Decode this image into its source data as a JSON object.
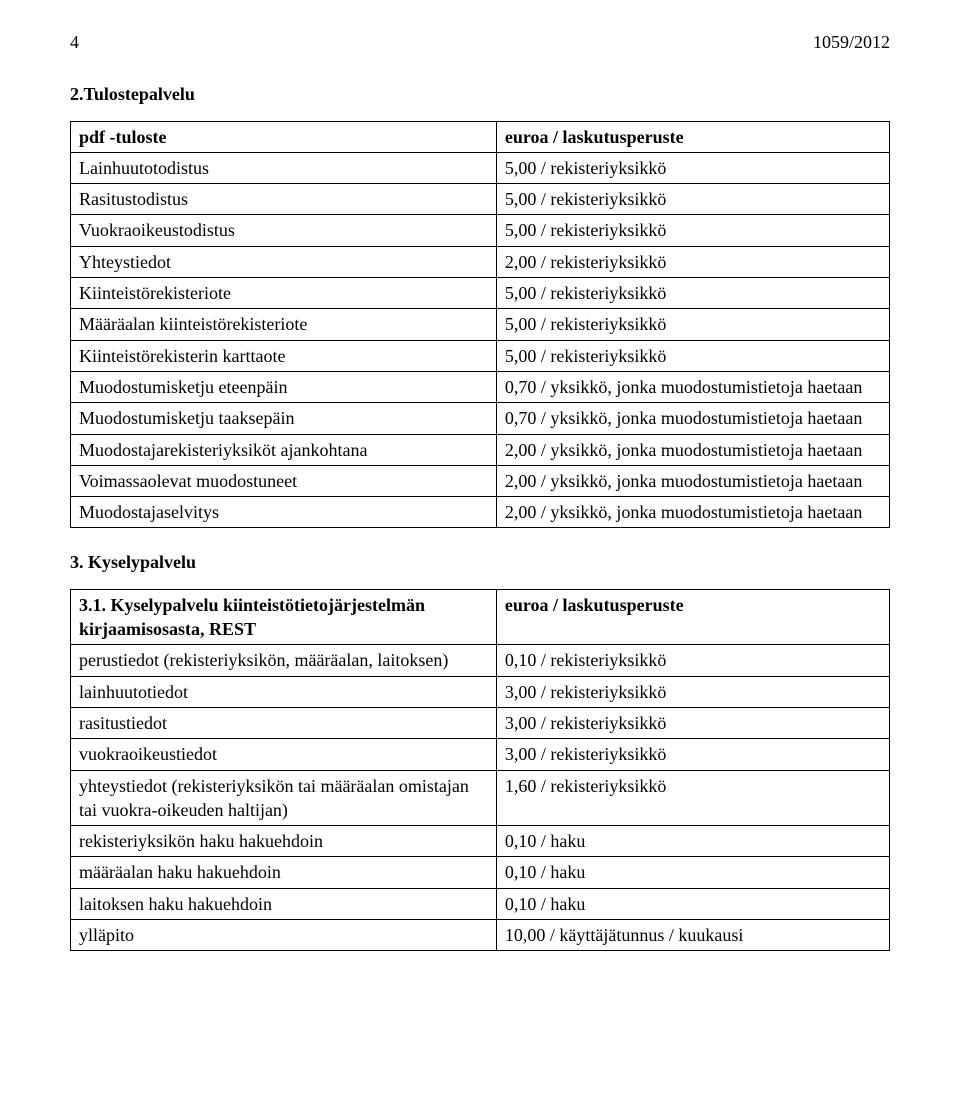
{
  "header": {
    "page_number": "4",
    "doc_ref": "1059/2012"
  },
  "section2": {
    "heading": "2.Tulostepalvelu",
    "rows": [
      {
        "left": "pdf -tuloste",
        "left_bold": true,
        "right": "euroa / laskutusperuste",
        "right_bold": true
      },
      {
        "left": "Lainhuutotodistus",
        "right": "5,00 / rekisteriyksikkö"
      },
      {
        "left": "Rasitustodistus",
        "right": "5,00 / rekisteriyksikkö"
      },
      {
        "left": "Vuokraoikeustodistus",
        "right": "5,00 / rekisteriyksikkö"
      },
      {
        "left": "Yhteystiedot",
        "right": "2,00 / rekisteriyksikkö"
      },
      {
        "left": "Kiinteistörekisteriote",
        "right": "5,00 / rekisteriyksikkö"
      },
      {
        "left": "Määräalan kiinteistörekisteriote",
        "right": "5,00 / rekisteriyksikkö"
      },
      {
        "left": "Kiinteistörekisterin karttaote",
        "right": "5,00 / rekisteriyksikkö"
      },
      {
        "left": "Muodostumisketju eteenpäin",
        "right": "0,70 / yksikkö, jonka muodostumistietoja haetaan"
      },
      {
        "left": "Muodostumisketju taaksepäin",
        "right": "0,70 / yksikkö, jonka muodostumistietoja haetaan"
      },
      {
        "left": "Muodostajarekisteriyksiköt ajankohtana",
        "right": "2,00 / yksikkö, jonka muodostumistietoja haetaan"
      },
      {
        "left": "Voimassaolevat muodostuneet",
        "right": "2,00 / yksikkö, jonka muodostumistietoja haetaan"
      },
      {
        "left": "Muodostajaselvitys",
        "right": "2,00 / yksikkö, jonka muodostumistietoja haetaan"
      }
    ]
  },
  "section3": {
    "heading": "3. Kyselypalvelu",
    "rows": [
      {
        "left": "3.1. Kyselypalvelu kiinteistötietojärjestelmän  kirjaamisosasta, REST",
        "left_bold": true,
        "right": "euroa / laskutusperuste",
        "right_bold": true
      },
      {
        "left": "perustiedot (rekisteriyksikön, määräalan, laitoksen)",
        "right": "0,10 / rekisteriyksikkö"
      },
      {
        "left": "lainhuutotiedot",
        "right": "3,00 / rekisteriyksikkö"
      },
      {
        "left": "rasitustiedot",
        "right": "3,00 / rekisteriyksikkö"
      },
      {
        "left": "vuokraoikeustiedot",
        "right": "3,00 / rekisteriyksikkö"
      },
      {
        "left": "yhteystiedot (rekisteriyksikön tai määräalan omistajan tai vuokra-oikeuden haltijan)",
        "right": "1,60 / rekisteriyksikkö"
      },
      {
        "left": "rekisteriyksikön haku hakuehdoin",
        "right": "0,10 / haku"
      },
      {
        "left": "määräalan haku hakuehdoin",
        "right": "0,10 / haku"
      },
      {
        "left": "laitoksen haku hakuehdoin",
        "right": "0,10 / haku"
      },
      {
        "left": "ylläpito",
        "right": "10,00 / käyttäjätunnus / kuukausi"
      }
    ]
  }
}
